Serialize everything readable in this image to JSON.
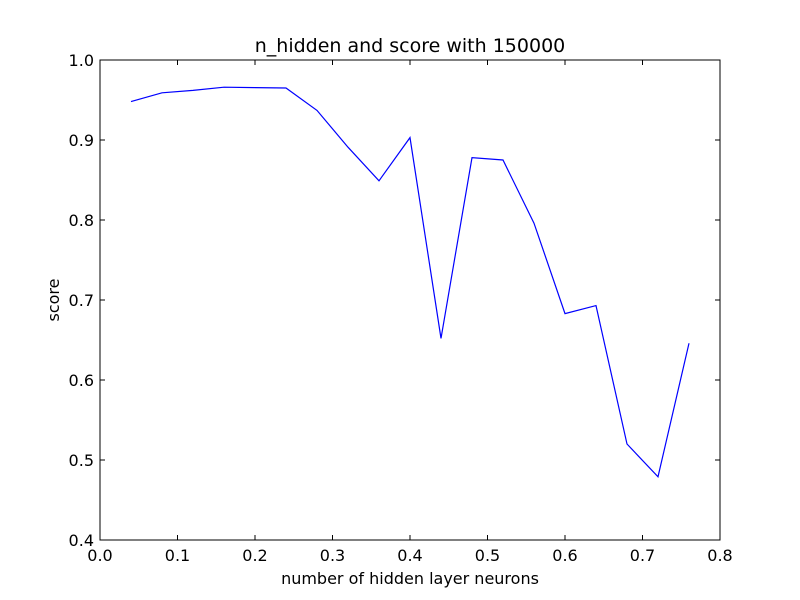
{
  "chart_data": {
    "type": "line",
    "title": "n_hidden and score with 150000",
    "xlabel": "number of hidden layer neurons",
    "ylabel": "score",
    "xlim": [
      0.0,
      0.8
    ],
    "ylim": [
      0.4,
      1.0
    ],
    "xticks": [
      "0.0",
      "0.1",
      "0.2",
      "0.3",
      "0.4",
      "0.5",
      "0.6",
      "0.7",
      "0.8"
    ],
    "yticks": [
      "0.4",
      "0.5",
      "0.6",
      "0.7",
      "0.8",
      "0.9",
      "1.0"
    ],
    "grid": false,
    "line_color": "#0000ff",
    "series": [
      {
        "x": [
          0.04,
          0.08,
          0.12,
          0.16,
          0.2,
          0.24,
          0.28,
          0.32,
          0.36,
          0.4,
          0.44,
          0.48,
          0.52,
          0.56,
          0.6,
          0.64,
          0.68,
          0.72,
          0.76
        ],
        "values": [
          0.948,
          0.959,
          0.962,
          0.966,
          0.9655,
          0.965,
          0.937,
          0.891,
          0.849,
          0.903,
          0.652,
          0.878,
          0.875,
          0.796,
          0.683,
          0.693,
          0.52,
          0.479,
          0.646
        ]
      }
    ]
  }
}
